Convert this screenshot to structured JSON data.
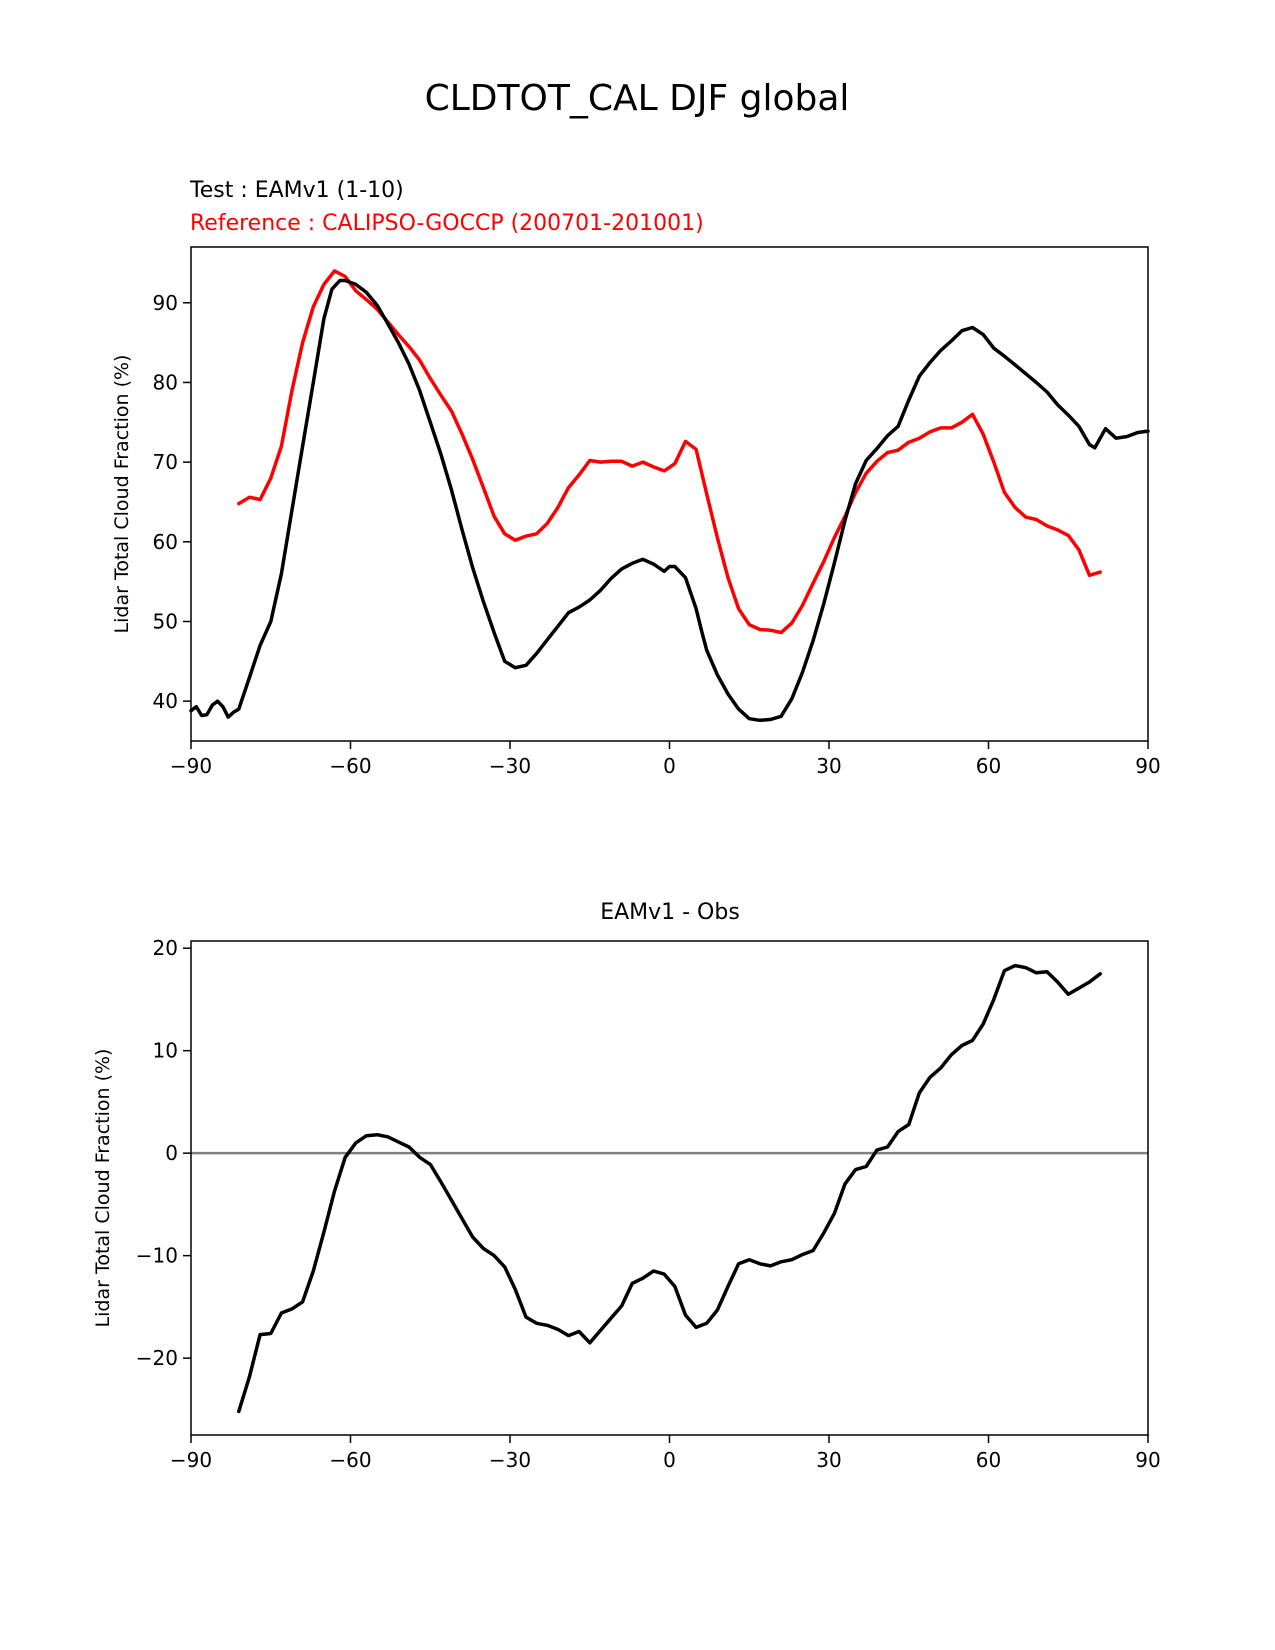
{
  "figure_title": "CLDTOT_CAL DJF global",
  "chart_data": [
    {
      "type": "line",
      "test_label": "Test : EAMv1 (1-10)",
      "reference_label": "Reference : CALIPSO-GOCCP (200701-201001)",
      "ylabel": "Lidar Total Cloud Fraction (%)",
      "xlabel": "",
      "xlim": [
        -90,
        90
      ],
      "ylim": [
        35,
        97
      ],
      "xticks": [
        -90,
        -60,
        -30,
        0,
        30,
        60,
        90
      ],
      "xtick_labels": [
        "−90",
        "−60",
        "−30",
        "0",
        "30",
        "60",
        "90"
      ],
      "yticks": [
        40,
        50,
        60,
        70,
        80,
        90
      ],
      "ytick_labels": [
        "40",
        "50",
        "60",
        "70",
        "80",
        "90"
      ],
      "series": [
        {
          "name": "Reference : CALIPSO-GOCCP (200701-201001)",
          "color": "#ff0000",
          "x": [
            -81,
            -79,
            -77,
            -75,
            -73,
            -71,
            -69,
            -67,
            -65,
            -63,
            -61,
            -59,
            -57,
            -55,
            -53,
            -51,
            -49,
            -47,
            -45,
            -43,
            -41,
            -39,
            -37,
            -35,
            -33,
            -31,
            -29,
            -27,
            -25,
            -23,
            -21,
            -19,
            -17,
            -15,
            -13,
            -11,
            -9,
            -7,
            -5,
            -3,
            -1,
            1,
            3,
            5,
            7,
            9,
            11,
            13,
            15,
            17,
            19,
            21,
            23,
            25,
            27,
            29,
            31,
            33,
            35,
            37,
            39,
            41,
            43,
            45,
            47,
            49,
            51,
            53,
            55,
            57,
            59,
            61,
            63,
            65,
            67,
            69,
            71,
            73,
            75,
            77,
            79,
            81
          ],
          "values": [
            64.8,
            65.6,
            65.3,
            68.0,
            72.0,
            79.0,
            85.0,
            89.5,
            92.3,
            94.0,
            93.3,
            91.5,
            90.4,
            89.2,
            87.6,
            86.0,
            84.5,
            82.8,
            80.5,
            78.4,
            76.4,
            73.5,
            70.3,
            66.8,
            63.2,
            61.0,
            60.2,
            60.7,
            61.0,
            62.3,
            64.3,
            66.8,
            68.4,
            70.2,
            70.0,
            70.1,
            70.1,
            69.5,
            70.0,
            69.4,
            68.9,
            69.8,
            72.6,
            71.6,
            66.0,
            60.5,
            55.5,
            51.6,
            49.6,
            49.0,
            48.9,
            48.6,
            49.8,
            52.0,
            54.8,
            57.5,
            60.5,
            63.2,
            66.2,
            68.6,
            70.1,
            71.2,
            71.5,
            72.5,
            73.0,
            73.8,
            74.3,
            74.3,
            75.0,
            76.0,
            73.5,
            70.0,
            66.2,
            64.3,
            63.1,
            62.8,
            62.0,
            61.5,
            60.8,
            59.0,
            55.8,
            56.2
          ]
        },
        {
          "name": "Test : EAMv1 (1-10)",
          "color": "#000000",
          "x": [
            -90,
            -89,
            -88,
            -87,
            -86,
            -85,
            -84,
            -83,
            -82,
            -81,
            -79,
            -77,
            -75,
            -73,
            -71,
            -69,
            -67,
            -65,
            -63.5,
            -62,
            -61,
            -59,
            -57,
            -55,
            -53,
            -51,
            -49,
            -47,
            -45,
            -43,
            -41,
            -39,
            -37,
            -35,
            -33,
            -31,
            -29,
            -27,
            -25,
            -23,
            -21,
            -19,
            -17,
            -15,
            -13,
            -11,
            -9,
            -7,
            -5,
            -3,
            -1,
            0,
            1,
            3,
            5,
            6,
            7,
            9,
            11,
            13,
            15,
            17,
            19,
            21,
            23,
            25,
            27,
            29,
            31,
            33,
            35,
            37,
            39,
            41,
            43,
            45,
            47,
            49,
            51,
            53,
            55,
            57,
            59,
            61,
            63,
            65,
            67,
            69,
            71,
            73,
            75,
            77,
            79,
            80,
            82,
            84,
            86,
            88,
            90
          ],
          "values": [
            38.8,
            39.3,
            38.2,
            38.3,
            39.5,
            40.0,
            39.3,
            38.0,
            38.6,
            39.0,
            43.0,
            47.0,
            50.0,
            56.0,
            64.0,
            72.0,
            80.0,
            88.0,
            91.7,
            92.8,
            92.8,
            92.3,
            91.3,
            89.7,
            87.4,
            85.0,
            82.3,
            79.0,
            75.0,
            71.0,
            66.5,
            61.5,
            56.7,
            52.5,
            48.6,
            45.0,
            44.2,
            44.5,
            46.0,
            47.7,
            49.4,
            51.1,
            51.8,
            52.7,
            53.9,
            55.4,
            56.6,
            57.3,
            57.8,
            57.2,
            56.3,
            56.9,
            56.9,
            55.5,
            51.6,
            48.9,
            46.4,
            43.3,
            40.9,
            39.0,
            37.8,
            37.6,
            37.7,
            38.1,
            40.3,
            43.6,
            47.6,
            52.2,
            57.3,
            62.7,
            67.3,
            70.2,
            71.7,
            73.3,
            74.5,
            77.8,
            80.8,
            82.5,
            84.0,
            85.2,
            86.5,
            86.9,
            86.0,
            84.3,
            83.3,
            82.2,
            81.1,
            80.0,
            78.8,
            77.2,
            75.9,
            74.5,
            72.2,
            71.8,
            74.2,
            73.0,
            73.2,
            73.7,
            73.9
          ]
        }
      ]
    },
    {
      "type": "line",
      "title": "EAMv1 - Obs",
      "ylabel": "Lidar Total Cloud Fraction (%)",
      "xlabel": "",
      "xlim": [
        -90,
        90
      ],
      "ylim": [
        -27.5,
        20.7
      ],
      "xticks": [
        -90,
        -60,
        -30,
        0,
        30,
        60,
        90
      ],
      "xtick_labels": [
        "−90",
        "−60",
        "−30",
        "0",
        "30",
        "60",
        "90"
      ],
      "yticks": [
        -20,
        -10,
        0,
        10,
        20
      ],
      "ytick_labels": [
        "−20",
        "−10",
        "0",
        "10",
        "20"
      ],
      "zero_line_color": "#808080",
      "series": [
        {
          "name": "EAMv1 - Obs",
          "color": "#000000",
          "x": [
            -81,
            -79,
            -77,
            -75,
            -73,
            -71,
            -69,
            -67,
            -65,
            -63,
            -61,
            -59,
            -57,
            -55,
            -53,
            -51,
            -49,
            -47,
            -45,
            -43,
            -41,
            -39,
            -37,
            -35,
            -33,
            -31,
            -29,
            -27,
            -25,
            -23,
            -21,
            -19,
            -17,
            -15,
            -13,
            -11,
            -9,
            -7,
            -5,
            -3,
            -1,
            1,
            3,
            5,
            7,
            9,
            11,
            13,
            15,
            17,
            19,
            21,
            23,
            25,
            27,
            29,
            31,
            33,
            35,
            37,
            39,
            41,
            43,
            45,
            47,
            49,
            51,
            53,
            55,
            57,
            59,
            61,
            63,
            65,
            67,
            69,
            71,
            73,
            75,
            77,
            79,
            81
          ],
          "values": [
            -25.2,
            -21.8,
            -17.7,
            -17.6,
            -15.6,
            -15.2,
            -14.5,
            -11.5,
            -7.7,
            -3.7,
            -0.4,
            1.0,
            1.7,
            1.8,
            1.6,
            1.1,
            0.6,
            -0.4,
            -1.1,
            -2.8,
            -4.6,
            -6.4,
            -8.2,
            -9.3,
            -10.0,
            -11.1,
            -13.3,
            -16.0,
            -16.6,
            -16.8,
            -17.2,
            -17.8,
            -17.4,
            -18.5,
            -17.3,
            -16.1,
            -14.9,
            -12.7,
            -12.2,
            -11.5,
            -11.8,
            -13.0,
            -15.8,
            -17.0,
            -16.6,
            -15.3,
            -13.0,
            -10.8,
            -10.4,
            -10.8,
            -11.0,
            -10.6,
            -10.4,
            -9.9,
            -9.5,
            -7.8,
            -5.9,
            -3.0,
            -1.6,
            -1.3,
            0.3,
            0.6,
            2.1,
            2.8,
            5.9,
            7.4,
            8.3,
            9.6,
            10.5,
            11.0,
            12.6,
            15.0,
            17.8,
            18.3,
            18.1,
            17.6,
            17.7,
            16.7,
            15.5,
            16.1,
            16.7,
            17.5
          ]
        }
      ]
    }
  ]
}
